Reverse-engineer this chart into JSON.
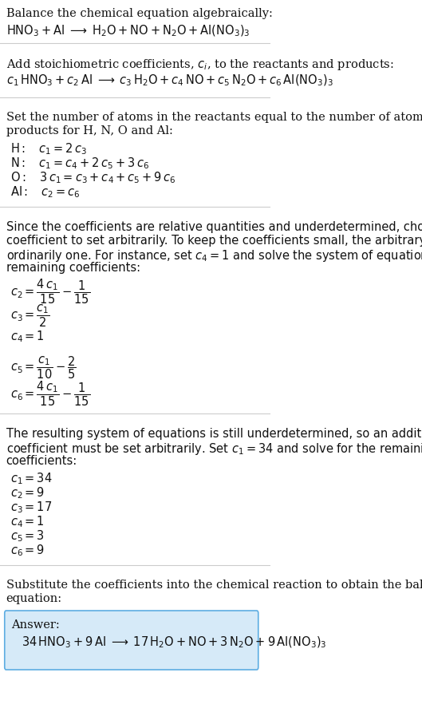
{
  "bg_color": "#ffffff",
  "text_color": "#000000",
  "answer_box_color": "#d6eaf8",
  "answer_box_edge": "#5dade2",
  "title_fontsize": 11,
  "body_fontsize": 11,
  "math_fontsize": 11,
  "small_fontsize": 10,
  "section1_title": "Balance the chemical equation algebraically:",
  "section1_eq": "$\\mathrm{HNO_3 + Al} \\;\\longrightarrow\\; \\mathrm{H_2O + NO + N_2O + Al(NO_3)_3}$",
  "section2_title": "Add stoichiometric coefficients, $c_i$, to the reactants and products:",
  "section2_eq": "$c_1\\,\\mathrm{HNO_3} + c_2\\,\\mathrm{Al} \\;\\longrightarrow\\; c_3\\,\\mathrm{H_2O} + c_4\\,\\mathrm{NO} + c_5\\,\\mathrm{N_2O} + c_6\\,\\mathrm{Al(NO_3)_3}$",
  "section3_title": "Set the number of atoms in the reactants equal to the number of atoms in the products for H, N, O and Al:",
  "section3_lines": [
    "$\\mathrm{H:}\\quad c_1 = 2\\,c_3$",
    "$\\mathrm{N:}\\quad c_1 = c_4 + 2\\,c_5 + 3\\,c_6$",
    "$\\mathrm{O:}\\quad 3\\,c_1 = c_3 + c_4 + c_5 + 9\\,c_6$",
    "$\\mathrm{Al:}\\quad c_2 = c_6$"
  ],
  "section4_title": "Since the coefficients are relative quantities and underdetermined, choose a coefficient to set arbitrarily. To keep the coefficients small, the arbitrary value is ordinarily one. For instance, set $c_4 = 1$ and solve the system of equations for the remaining coefficients:",
  "section4_lines": [
    "$c_2 = \\dfrac{4\\,c_1}{15} - \\dfrac{1}{15}$",
    "$c_3 = \\dfrac{c_1}{2}$",
    "$c_4 = 1$",
    "$c_5 = \\dfrac{c_1}{10} - \\dfrac{2}{5}$",
    "$c_6 = \\dfrac{4\\,c_1}{15} - \\dfrac{1}{15}$"
  ],
  "section5_title": "The resulting system of equations is still underdetermined, so an additional coefficient must be set arbitrarily. Set $c_1 = 34$ and solve for the remaining coefficients:",
  "section5_lines": [
    "$c_1 = 34$",
    "$c_2 = 9$",
    "$c_3 = 17$",
    "$c_4 = 1$",
    "$c_5 = 3$",
    "$c_6 = 9$"
  ],
  "section6_title": "Substitute the coefficients into the chemical reaction to obtain the balanced equation:",
  "answer_label": "Answer:",
  "answer_eq": "$34\\,\\mathrm{HNO_3} + 9\\,\\mathrm{Al} \\;\\longrightarrow\\; 17\\,\\mathrm{H_2O} + \\mathrm{NO} + 3\\,\\mathrm{N_2O} + 9\\,\\mathrm{Al(NO_3)_3}$"
}
